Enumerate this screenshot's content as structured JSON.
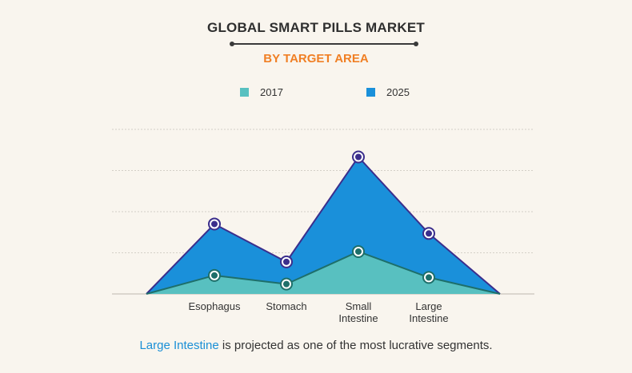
{
  "header": {
    "title": "GLOBAL SMART PILLS MARKET",
    "subtitle": "BY TARGET AREA"
  },
  "chart_data": {
    "type": "area",
    "categories": [
      "Esophagus",
      "Stomach",
      "Small Intestine",
      "Large Intestine"
    ],
    "series": [
      {
        "name": "2017",
        "values": [
          0.45,
          0.24,
          1.03,
          0.4
        ],
        "color": "#58c0c0",
        "stroke": "#1e6f6a"
      },
      {
        "name": "2025",
        "values": [
          1.7,
          0.78,
          3.33,
          1.47
        ],
        "color": "#1a90da",
        "stroke": "#3b2e8c"
      }
    ],
    "ylim": [
      0,
      4
    ],
    "grid": true,
    "legend_position": "top"
  },
  "footer": {
    "highlight": "Large Intestine",
    "text": " is projected as one of the most lucrative segments."
  }
}
